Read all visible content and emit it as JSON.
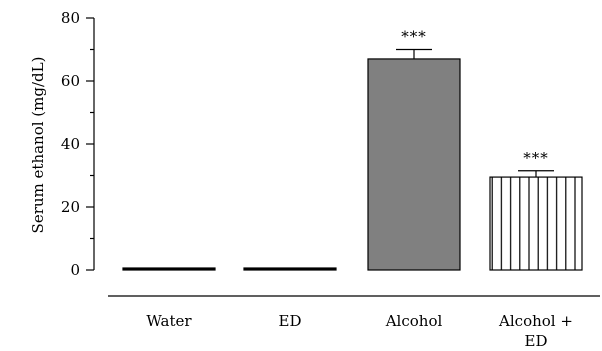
{
  "chart_data": {
    "type": "bar",
    "title": "",
    "xlabel": "",
    "ylabel": "Serum ethanol (mg/dL)",
    "ylim": [
      0,
      80
    ],
    "yticks": [
      0,
      20,
      40,
      60,
      80
    ],
    "categories": [
      "Water",
      "ED",
      "Alcohol",
      "Alcohol + ED"
    ],
    "category_lines": [
      [
        "Water"
      ],
      [
        "ED"
      ],
      [
        "Alcohol"
      ],
      [
        "Alcohol +",
        "ED"
      ]
    ],
    "values": [
      0.5,
      0.5,
      67,
      29.5
    ],
    "errors": [
      0.2,
      0.2,
      3,
      2
    ],
    "fills": [
      "solid-black",
      "solid-black",
      "solid-gray",
      "vertical-hatch"
    ],
    "bar_colors": [
      "#000000",
      "#000000",
      "#808080",
      "#ffffff"
    ],
    "annotations": [
      "",
      "",
      "***",
      "***"
    ]
  }
}
